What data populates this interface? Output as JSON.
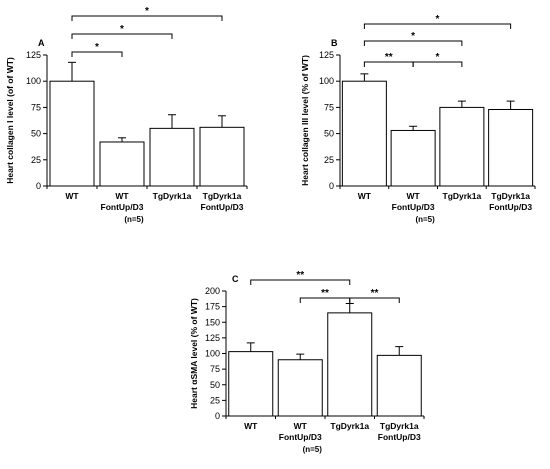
{
  "chart_data": [
    {
      "type": "bar",
      "panel_label": "A",
      "ylabel": "Heart collagen I level (of of WT)",
      "ylim": [
        0,
        125
      ],
      "yticks": [
        0,
        25,
        50,
        75,
        100,
        125
      ],
      "categories": [
        "WT",
        "WT\nFontUp/D3",
        "TgDyrk1a",
        "TgDyrk1a\nFontUp/D3"
      ],
      "values": [
        100,
        42,
        55,
        56
      ],
      "errors": [
        18,
        4,
        13,
        11
      ],
      "note": "(n=5)",
      "significance": [
        {
          "from": 0,
          "to": 1,
          "label": "*"
        },
        {
          "from": 0,
          "to": 2,
          "label": "*"
        },
        {
          "from": 0,
          "to": 3,
          "label": "*"
        }
      ]
    },
    {
      "type": "bar",
      "panel_label": "B",
      "ylabel": "Heart collagen III level (% of WT)",
      "ylim": [
        0,
        125
      ],
      "yticks": [
        0,
        25,
        50,
        75,
        100,
        125
      ],
      "categories": [
        "WT",
        "WT\nFontUp/D3",
        "TgDyrk1a",
        "TgDyrk1a\nFontUp/D3"
      ],
      "values": [
        100,
        53,
        75,
        73
      ],
      "errors": [
        7,
        4,
        6,
        8
      ],
      "note": "(n=5)",
      "significance": [
        {
          "from": 0,
          "to": 1,
          "label": "**"
        },
        {
          "from": 1,
          "to": 2,
          "label": "*"
        },
        {
          "from": 0,
          "to": 2,
          "label": "*"
        },
        {
          "from": 0,
          "to": 3,
          "label": "*"
        }
      ]
    },
    {
      "type": "bar",
      "panel_label": "C",
      "ylabel": "Heart αSMA level (% of WT)",
      "ylim": [
        0,
        200
      ],
      "yticks": [
        0,
        25,
        50,
        75,
        100,
        125,
        150,
        175,
        200
      ],
      "categories": [
        "WT",
        "WT\nFontUp/D3",
        "TgDyrk1a",
        "TgDyrk1a\nFontUp/D3"
      ],
      "values": [
        103,
        90,
        165,
        97
      ],
      "errors": [
        14,
        9,
        15,
        14
      ],
      "note": "(n=5)",
      "significance": [
        {
          "from": 1,
          "to": 2,
          "label": "**"
        },
        {
          "from": 2,
          "to": 3,
          "label": "**"
        },
        {
          "from": 0,
          "to": 2,
          "label": "**"
        }
      ]
    }
  ]
}
